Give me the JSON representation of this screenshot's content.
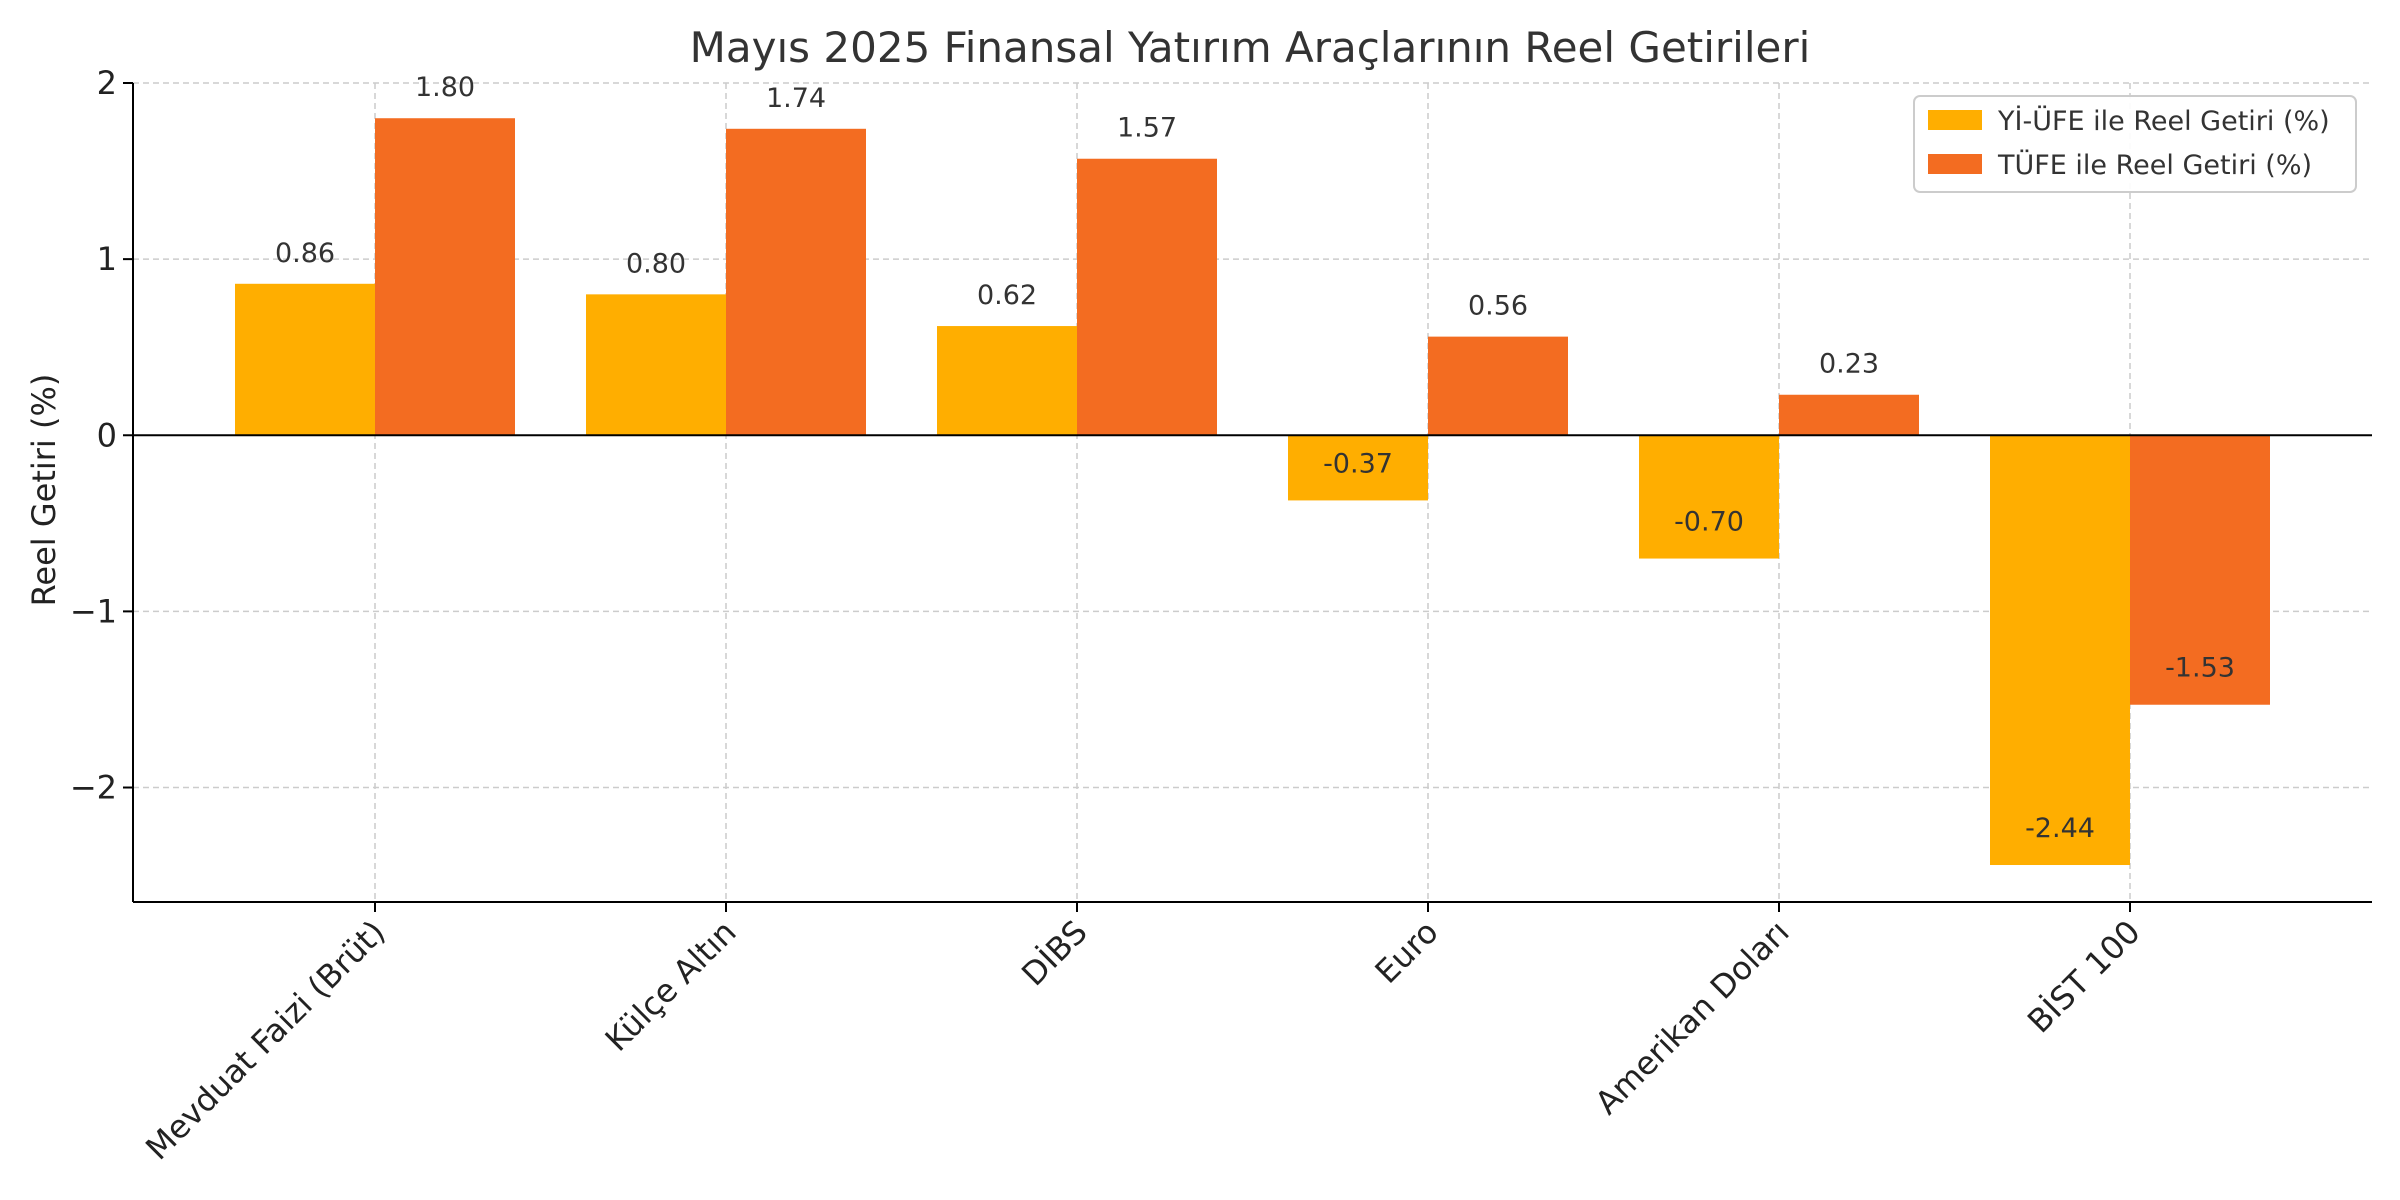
{
  "chart_data": {
    "type": "bar",
    "title": "Mayıs 2025 Finansal Yatırım Araçlarının Reel Getirileri",
    "xlabel": "",
    "ylabel": "Reel Getiri (%)",
    "categories": [
      "Mevduat Faizi (Brüt)",
      "Külçe Altın",
      "DİBS",
      "Euro",
      "Amerikan Doları",
      "BİST 100"
    ],
    "series": [
      {
        "name": "Yİ-ÜFE ile Reel Getiri (%)",
        "color": "#FFAE00",
        "values": [
          0.86,
          0.8,
          0.62,
          -0.37,
          -0.7,
          -2.44
        ]
      },
      {
        "name": "TÜFE ile Reel Getiri (%)",
        "color": "#F36C21",
        "values": [
          1.8,
          1.74,
          1.57,
          0.56,
          0.23,
          -1.53
        ]
      }
    ],
    "ylim": [
      -2.65,
      2.0
    ],
    "yticks": [
      2,
      1,
      0,
      -1,
      -2
    ],
    "ytick_labels": [
      "2",
      "1",
      "0",
      "−1",
      "−2"
    ],
    "value_labels": [
      [
        "0.86",
        "0.80",
        "0.62",
        "-0.37",
        "-0.70",
        "-2.44"
      ],
      [
        "1.80",
        "1.74",
        "1.57",
        "0.56",
        "0.23",
        "-1.53"
      ]
    ],
    "grid": true,
    "legend_position": "top-right"
  }
}
